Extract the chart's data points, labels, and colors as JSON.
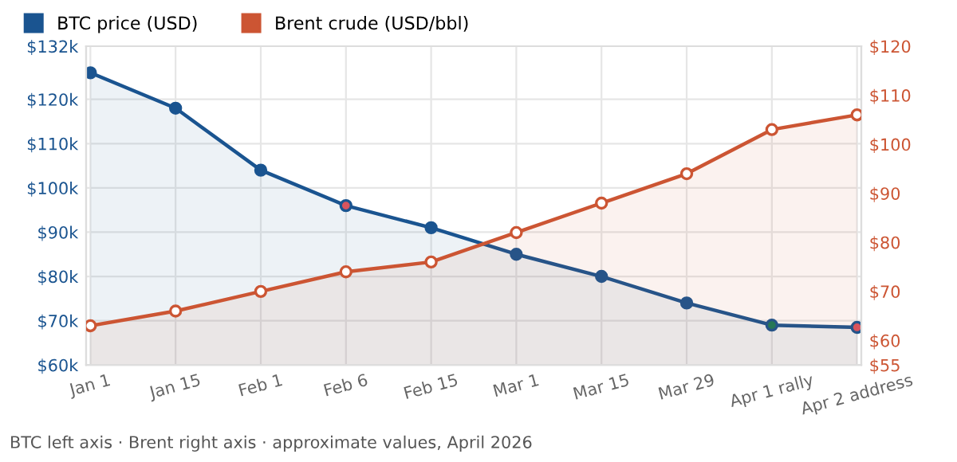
{
  "chart_data": {
    "type": "area",
    "categories": [
      "Jan 1",
      "Jan 15",
      "Feb 1",
      "Feb 6",
      "Feb 15",
      "Mar 1",
      "Mar 15",
      "Mar 29",
      "Apr 1 rally",
      "Apr 2 address"
    ],
    "series": [
      {
        "name": "BTC price (USD)",
        "color": "#1a5490",
        "colors": [
          "#1a5490",
          "#1a5490",
          "#1a5490",
          "#d9545e",
          "#1a5490",
          "#1a5490",
          "#1a5490",
          "#1a5490",
          "#1a7a5a",
          "#d9545e"
        ],
        "values": [
          126000,
          118000,
          104000,
          96000,
          91000,
          85000,
          80000,
          74000,
          69000,
          68500
        ]
      },
      {
        "name": "Brent crude (USD/bbl)",
        "color": "#cc5533",
        "axis": "y2",
        "values": [
          63,
          66,
          70,
          74,
          76,
          82,
          88,
          94,
          103,
          106
        ]
      }
    ],
    "ylim": [
      60000,
      132000
    ],
    "yticks": [
      {
        "value": 60000,
        "label": "$60k"
      },
      {
        "value": 70000,
        "label": "$70k"
      },
      {
        "value": 80000,
        "label": "$80k"
      },
      {
        "value": 90000,
        "label": "$90k"
      },
      {
        "value": 100000,
        "label": "$100k"
      },
      {
        "value": 110000,
        "label": "$110k"
      },
      {
        "value": 120000,
        "label": "$120k"
      },
      {
        "value": 132000,
        "label": "$132k"
      }
    ],
    "y2lim": [
      55,
      120
    ],
    "y2ticks": [
      {
        "value": 55,
        "label": "$55"
      },
      {
        "value": 60,
        "label": "$60"
      },
      {
        "value": 70,
        "label": "$70"
      },
      {
        "value": 80,
        "label": "$80"
      },
      {
        "value": 90,
        "label": "$90"
      },
      {
        "value": 100,
        "label": "$100"
      },
      {
        "value": 110,
        "label": "$110"
      },
      {
        "value": 120,
        "label": "$120"
      }
    ],
    "grid": true,
    "legend": "top left",
    "marker": "circle",
    "line_style": "solid",
    "annotations": [
      "BTC left axis · Brent right axis · approximate values, April 2026"
    ]
  }
}
